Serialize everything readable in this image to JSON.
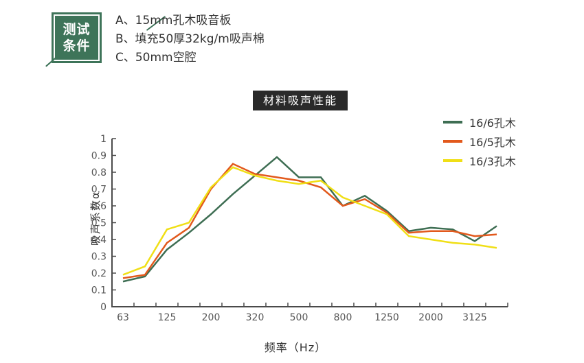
{
  "test_conditions": {
    "badge_line1": "测试",
    "badge_line2": "条件",
    "badge_color": "#3e7459",
    "items": [
      "A、15mm孔木吸音板",
      "B、填充50厚32kg/m吸声棉",
      "C、50mm空腔"
    ]
  },
  "chart_title": "材料吸声性能",
  "chart_data": {
    "type": "line",
    "title": "材料吸声性能",
    "xlabel": "频率（Hz）",
    "ylabel": "吸声系数α",
    "ylim": [
      0,
      1
    ],
    "ytick_step": 0.1,
    "grid": false,
    "legend_position": "top-right",
    "categories": [
      "63",
      "",
      "125",
      "",
      "200",
      "",
      "320",
      "",
      "500",
      "",
      "800",
      "",
      "1250",
      "",
      "2000",
      "",
      "3125",
      ""
    ],
    "series": [
      {
        "name": "16/6孔木",
        "color": "#3e6e53",
        "values": [
          0.15,
          0.18,
          0.34,
          0.44,
          0.55,
          0.67,
          0.78,
          0.89,
          0.77,
          0.77,
          0.6,
          0.66,
          0.57,
          0.45,
          0.47,
          0.46,
          0.39,
          0.48
        ]
      },
      {
        "name": "16/5孔木",
        "color": "#e2591c",
        "values": [
          0.17,
          0.19,
          0.38,
          0.47,
          0.7,
          0.85,
          0.79,
          0.77,
          0.75,
          0.71,
          0.6,
          0.64,
          0.56,
          0.44,
          0.45,
          0.45,
          0.42,
          0.43
        ]
      },
      {
        "name": "16/3孔木",
        "color": "#f0df16",
        "values": [
          0.19,
          0.24,
          0.46,
          0.5,
          0.71,
          0.83,
          0.78,
          0.75,
          0.73,
          0.75,
          0.65,
          0.6,
          0.55,
          0.42,
          0.4,
          0.38,
          0.37,
          0.35
        ]
      }
    ],
    "axis_color": "#4a4a4a"
  }
}
